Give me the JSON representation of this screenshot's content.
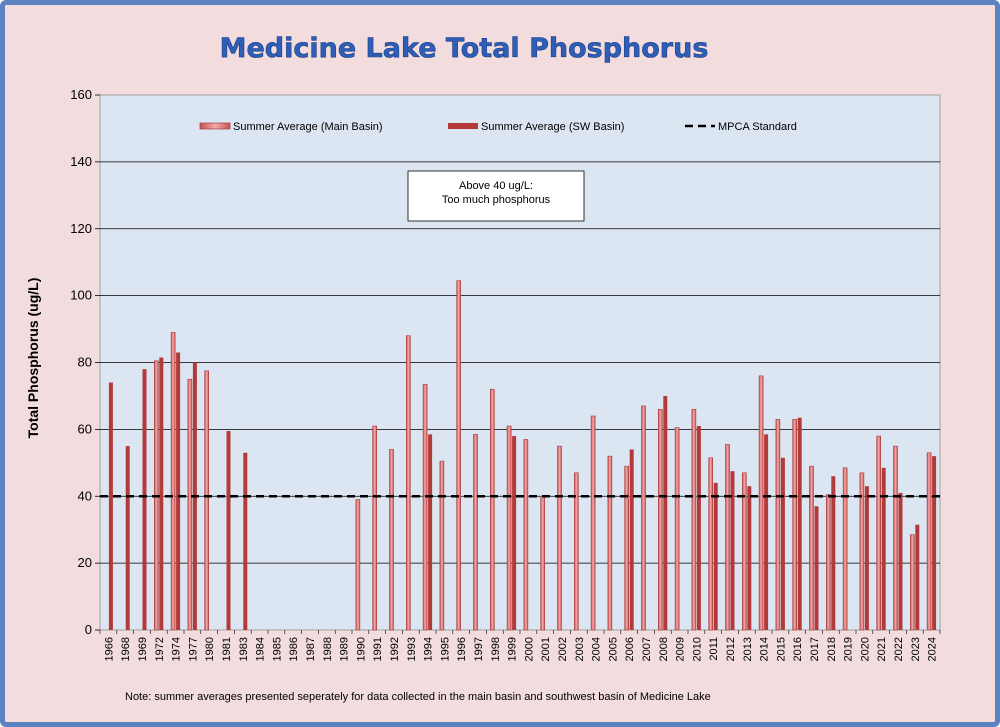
{
  "chart_data": {
    "type": "bar",
    "title": "Medicine Lake Total Phosphorus",
    "ylabel": "Total Phosphorus (ug/L)",
    "xlabel": "",
    "ylim": [
      0,
      160
    ],
    "yticks": [
      0,
      20,
      40,
      60,
      80,
      100,
      120,
      140,
      160
    ],
    "grid": true,
    "legend_position": "top",
    "categories": [
      "1966",
      "1968",
      "1969",
      "1972",
      "1974",
      "1977",
      "1980",
      "1981",
      "1983",
      "1984",
      "1985",
      "1986",
      "1987",
      "1988",
      "1989",
      "1990",
      "1991",
      "1992",
      "1993",
      "1994",
      "1995",
      "1996",
      "1997",
      "1998",
      "1999",
      "2000",
      "2001",
      "2002",
      "2003",
      "2004",
      "2005",
      "2006",
      "2007",
      "2008",
      "2009",
      "2010",
      "2011",
      "2012",
      "2013",
      "2014",
      "2015",
      "2016",
      "2017",
      "2018",
      "2019",
      "2020",
      "2021",
      "2022",
      "2023",
      "2024"
    ],
    "series": [
      {
        "name": "Summer Average (Main Basin)",
        "color": "#d66a6a",
        "values": [
          null,
          null,
          null,
          80.5,
          89,
          75,
          77.5,
          null,
          null,
          null,
          null,
          null,
          null,
          null,
          null,
          39,
          61,
          54,
          88,
          73.5,
          50.5,
          104.5,
          58.5,
          72,
          61,
          57,
          40,
          55,
          47,
          64,
          52,
          49,
          67,
          66,
          60.5,
          66,
          51.5,
          55.5,
          47,
          76,
          63,
          63,
          49,
          40.5,
          48.5,
          47,
          58,
          55,
          28.5,
          53
        ]
      },
      {
        "name": "Summer Average (SW Basin)",
        "color": "#b43a3a",
        "values": [
          74,
          55,
          78,
          81.5,
          83,
          80,
          null,
          59.5,
          53,
          null,
          null,
          null,
          null,
          null,
          null,
          null,
          null,
          null,
          null,
          58.5,
          null,
          null,
          null,
          null,
          58,
          null,
          null,
          null,
          null,
          null,
          null,
          54,
          null,
          70,
          null,
          61,
          44,
          47.5,
          43,
          58.5,
          51.5,
          63.5,
          37,
          46,
          null,
          43,
          48.5,
          41,
          31.5,
          52
        ]
      },
      {
        "name": "MPCA Standard",
        "type": "line",
        "style": "dashed",
        "color": "#000000",
        "value": 40
      }
    ],
    "annotations": [
      {
        "lines": [
          "Above 40 ug/L:",
          "Too much phosphorus"
        ]
      }
    ],
    "note": "Note: summer averages presented seperately for data collected in the main basin and southwest basin of Medicine Lake"
  }
}
